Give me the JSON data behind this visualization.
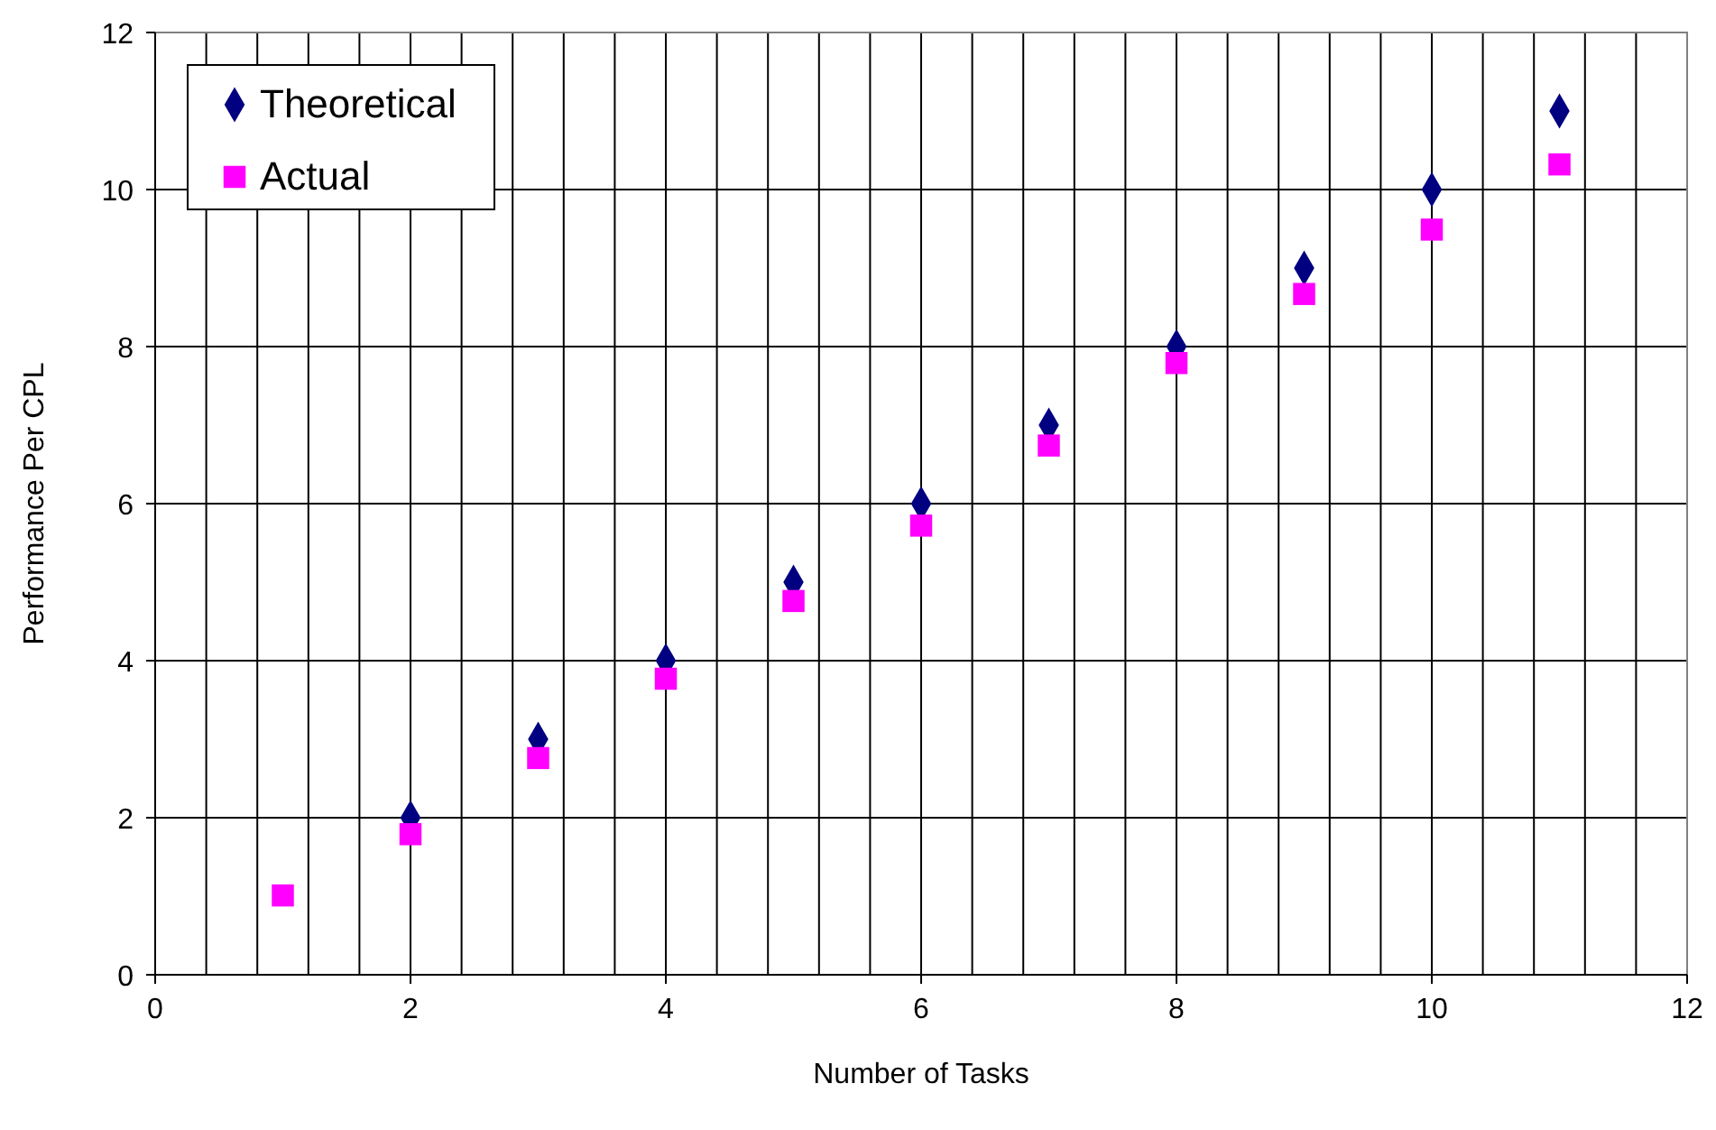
{
  "chart_data": {
    "type": "scatter",
    "xlabel": "Number of Tasks",
    "ylabel": "Performance Per CPL",
    "x": [
      1,
      2,
      3,
      4,
      5,
      6,
      7,
      8,
      9,
      10,
      11
    ],
    "series": [
      {
        "name": "Theoretical",
        "color": "#000080",
        "marker": "diamond",
        "values": [
          null,
          2,
          3,
          4,
          5,
          6,
          7,
          8,
          9,
          10,
          11
        ]
      },
      {
        "name": "Actual",
        "color": "#ff00ff",
        "marker": "square",
        "values": [
          1.01,
          1.79,
          2.76,
          3.77,
          4.76,
          5.72,
          6.74,
          7.79,
          8.67,
          9.49,
          10.32
        ]
      }
    ],
    "xlim": [
      0,
      12
    ],
    "xticks": [
      0,
      {
        "value": 0.4,
        "label": null
      },
      {
        "value": 0.8,
        "label": null
      },
      {
        "value": 1.2,
        "label": null
      },
      {
        "value": 1.6,
        "label": null
      },
      2,
      {
        "value": 2.4,
        "label": null
      },
      {
        "value": 2.8,
        "label": null
      },
      {
        "value": 3.2,
        "label": null
      },
      {
        "value": 3.6,
        "label": null
      },
      4,
      {
        "value": 4.4,
        "label": null
      },
      {
        "value": 4.8,
        "label": null
      },
      {
        "value": 5.2,
        "label": null
      },
      {
        "value": 5.6,
        "label": null
      },
      6,
      {
        "value": 6.4,
        "label": null
      },
      {
        "value": 6.8,
        "label": null
      },
      {
        "value": 7.2,
        "label": null
      },
      {
        "value": 7.6,
        "label": null
      },
      8,
      {
        "value": 8.4,
        "label": null
      },
      {
        "value": 8.8,
        "label": null
      },
      {
        "value": 9.2,
        "label": null
      },
      {
        "value": 9.6,
        "label": null
      },
      10,
      {
        "value": 10.4,
        "label": null
      },
      {
        "value": 10.8,
        "label": null
      },
      {
        "value": 11.2,
        "label": null
      },
      {
        "value": 11.6,
        "label": null
      },
      12
    ],
    "ylim": [
      0,
      12
    ],
    "yticks": [
      0,
      2,
      4,
      6,
      8,
      10,
      12
    ],
    "grid": true,
    "legend": "top left"
  }
}
